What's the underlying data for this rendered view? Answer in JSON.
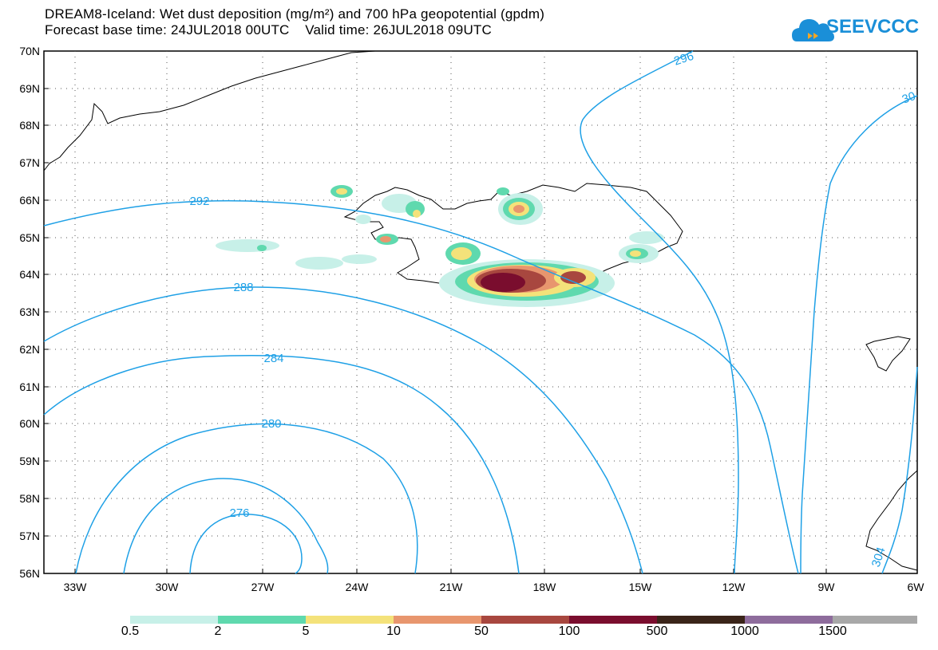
{
  "header": {
    "title": "DREAM8-Iceland: Wet dust deposition (mg/m²) and 700 hPa geopotential (gpdm)",
    "subtitle": "Forecast base time: 24JUL2018 00UTC    Valid time: 26JUL2018 09UTC"
  },
  "logo": {
    "text": "SEEVCCC",
    "color": "#1a8fd8"
  },
  "axes": {
    "lat_labels": [
      "70N",
      "69N",
      "68N",
      "67N",
      "66N",
      "65N",
      "64N",
      "63N",
      "62N",
      "61N",
      "60N",
      "59N",
      "58N",
      "57N",
      "56N"
    ],
    "lon_labels": [
      "33W",
      "30W",
      "27W",
      "24W",
      "21W",
      "18W",
      "15W",
      "12W",
      "9W",
      "6W"
    ]
  },
  "contours": {
    "color": "#1ea0e6",
    "labels": [
      "296",
      "30",
      "292",
      "288",
      "284",
      "280",
      "276",
      "304"
    ]
  },
  "legend": {
    "colors": [
      "#c7f0e8",
      "#5fd9ae",
      "#f4e27a",
      "#e8966e",
      "#a8473f",
      "#7a0d2e",
      "#3a2419",
      "#8e6c9c",
      "#a8a8a8"
    ],
    "labels": [
      "0.5",
      "2",
      "5",
      "10",
      "50",
      "100",
      "500",
      "1000",
      "1500"
    ]
  }
}
